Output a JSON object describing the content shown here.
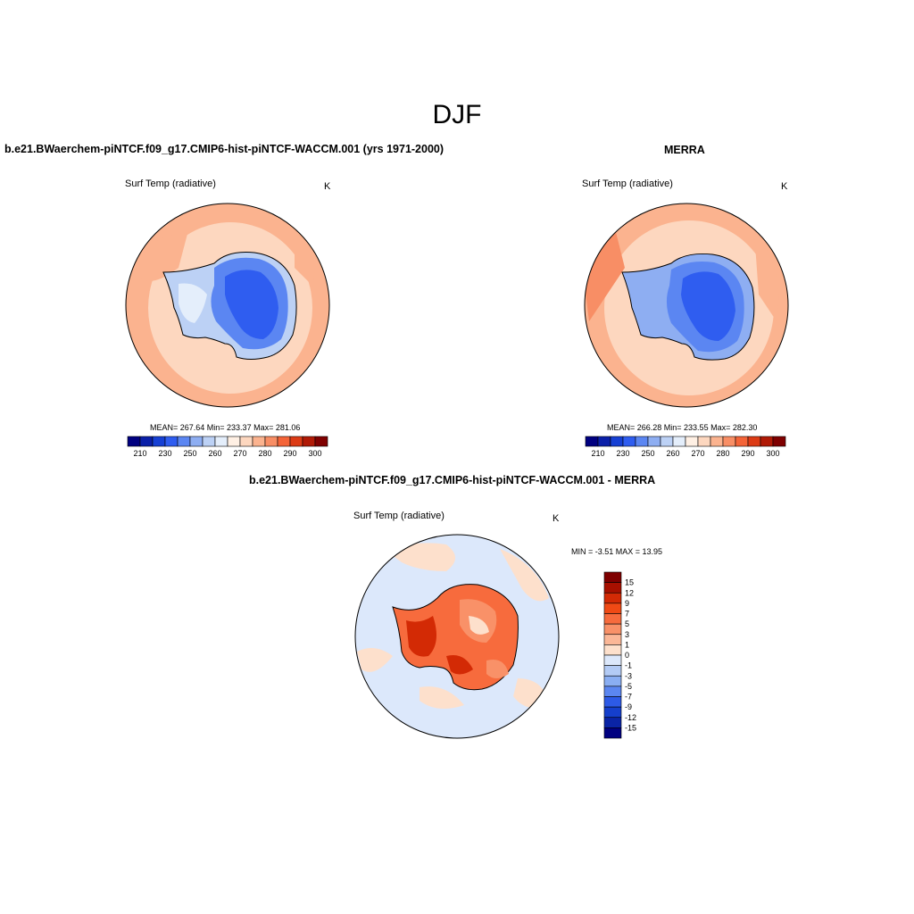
{
  "figure": {
    "title": "DJF"
  },
  "panels": [
    {
      "case_title": "b.e21.BWaerchem-piNTCF.f09_g17.CMIP6-hist-piNTCF-WACCM.001 (yrs 1971-2000)",
      "variable": "Surf Temp (radiative)",
      "units": "K",
      "stats": "MEAN= 267.64  Min= 233.37  Max= 281.06"
    },
    {
      "case_title": "MERRA",
      "variable": "Surf Temp (radiative)",
      "units": "K",
      "stats": "MEAN= 266.28  Min= 233.55  Max= 282.30"
    },
    {
      "case_title": "b.e21.BWaerchem-piNTCF.f09_g17.CMIP6-hist-piNTCF-WACCM.001 - MERRA",
      "variable": "Surf Temp (radiative)",
      "units": "K",
      "stats": "MIN =  -3.51 MAX =  13.95"
    }
  ],
  "colorbars": {
    "absolute": {
      "labels": [
        "210",
        "230",
        "250",
        "260",
        "270",
        "280",
        "290",
        "300"
      ],
      "colors": [
        "#000080",
        "#0a1fa8",
        "#1640d4",
        "#2f5df0",
        "#5b86f2",
        "#8eaef2",
        "#bcd1f5",
        "#e4eefb",
        "#fff0e4",
        "#fdd7bf",
        "#fbb38f",
        "#f88e65",
        "#f46438",
        "#dc3b15",
        "#b01a06",
        "#7f0000"
      ]
    },
    "difference": {
      "labels": [
        "15",
        "12",
        "9",
        "7",
        "5",
        "3",
        "1",
        "0",
        "-1",
        "-3",
        "-5",
        "-7",
        "-9",
        "-12",
        "-15"
      ],
      "colors": [
        "#7f0000",
        "#a81000",
        "#d32a05",
        "#f04a15",
        "#f76b3d",
        "#f99168",
        "#fbb797",
        "#fde0cc",
        "#dce8fb",
        "#b3cbf5",
        "#8aaef2",
        "#5b86f0",
        "#2d5ae6",
        "#153fcc",
        "#0a24a6",
        "#000080"
      ]
    }
  },
  "chart_data": {
    "type": "heatmap",
    "title": "DJF",
    "panels": [
      {
        "name": "b.e21.BWaerchem-piNTCF.f09_g17.CMIP6-hist-piNTCF-WACCM.001 (yrs 1971-2000)",
        "variable": "Surf Temp (radiative)",
        "units": "K",
        "mean": 267.64,
        "min": 233.37,
        "max": 281.06
      },
      {
        "name": "MERRA",
        "variable": "Surf Temp (radiative)",
        "units": "K",
        "mean": 266.28,
        "min": 233.55,
        "max": 282.3
      },
      {
        "name": "b.e21.BWaerchem-piNTCF.f09_g17.CMIP6-hist-piNTCF-WACCM.001 - MERRA",
        "variable": "Surf Temp (radiative)",
        "units": "K",
        "min": -3.51,
        "max": 13.95
      }
    ],
    "abs_levels": [
      210,
      230,
      250,
      260,
      270,
      280,
      290,
      300
    ],
    "diff_levels": [
      15,
      12,
      9,
      7,
      5,
      3,
      1,
      0,
      -1,
      -3,
      -5,
      -7,
      -9,
      -12,
      -15
    ]
  }
}
